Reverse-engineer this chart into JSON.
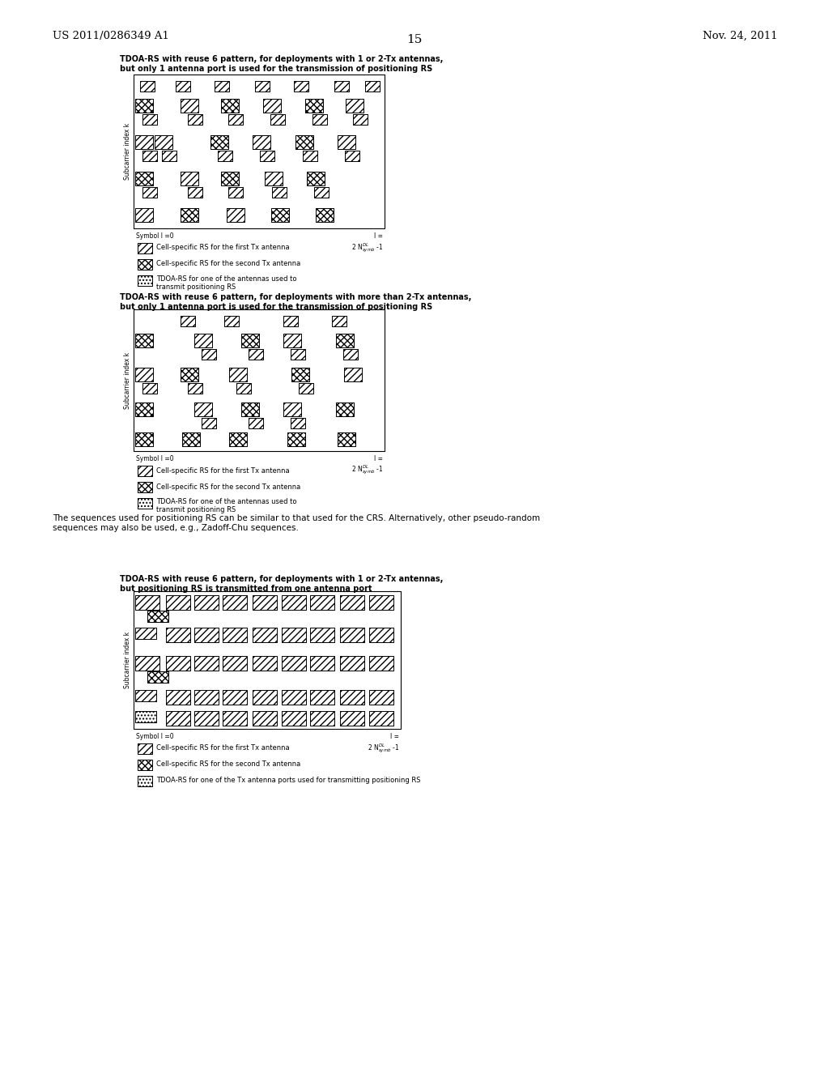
{
  "bg_color": "#ffffff",
  "page_num": "15",
  "patent_left": "US 2011/0286349 A1",
  "patent_right": "Nov. 24, 2011",
  "d1_title": "TDOA-RS with reuse 6 pattern, for deployments with 1 or 2-Tx antennas,\nbut only 1 antenna port is used for the transmission of positioning RS",
  "d2_title": "TDOA-RS with reuse 6 pattern, for deployments with more than 2-Tx antennas,\nbut only 1 antenna port is used for the transmission of positioning RS",
  "d3_title": "TDOA-RS with reuse 6 pattern, for deployments with 1 or 2-Tx antennas,\nbut positioning RS is transmitted from one antenna port",
  "ylabel": "Subcarrier index k",
  "xlabel": "Symbol l =0",
  "middle_text": "The sequences used for positioning RS can be similar to that used for the CRS. Alternatively, other pseudo-random\nsequences may also be used, e.g., Zadoff-Chu sequences.",
  "leg_text1": "Cell-specific RS for the first Tx antenna",
  "leg_text2": "Cell-specific RS for the second Tx antenna",
  "leg_text3a": "TDOA-RS for one of the antennas used to\ntransmit positioning RS",
  "leg_text3b": "TDOA-RS for one of the Tx antenna ports used for transmitting positioning RS"
}
